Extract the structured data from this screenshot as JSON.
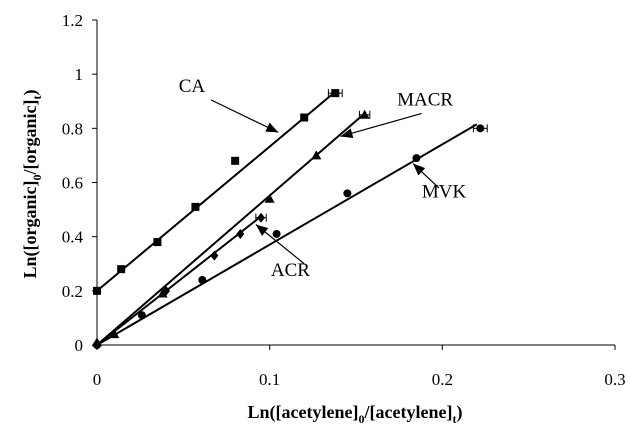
{
  "chart_data": {
    "type": "scatter",
    "title": "",
    "xlabel": "Ln([acetylene]0/[acetylene]t)",
    "ylabel": "Ln([organic]0/[organic]t)",
    "xlabel_parts": {
      "base": "Ln([acetylene]",
      "sub1": "0",
      "mid": "/[acetylene]",
      "sub2": "t",
      "end": ")"
    },
    "ylabel_parts": {
      "base": "Ln([organic]",
      "sub1": "0",
      "mid": "/[organic]",
      "sub2": "t",
      "end": ")"
    },
    "xlim": [
      0,
      0.3
    ],
    "ylim": [
      0,
      1.2
    ],
    "x_ticks": [
      "0",
      "0.1",
      "0.2",
      "0.3"
    ],
    "y_ticks": [
      "0",
      "0.2",
      "0.4",
      "0.6",
      "0.8",
      "1",
      "1.2"
    ],
    "grid": false,
    "series": [
      {
        "name": "CA",
        "marker": "square",
        "x": [
          0,
          0.014,
          0.035,
          0.057,
          0.08,
          0.12,
          0.138
        ],
        "y": [
          0.2,
          0.28,
          0.38,
          0.51,
          0.68,
          0.84,
          0.93
        ],
        "trend": {
          "x0": 0,
          "y0": 0.2,
          "x1": 0.138,
          "y1": 0.935
        },
        "error_x": 0.004
      },
      {
        "name": "MACR",
        "marker": "triangle",
        "x": [
          0,
          0.01,
          0.038,
          0.1,
          0.127,
          0.155
        ],
        "y": [
          0.01,
          0.04,
          0.19,
          0.54,
          0.7,
          0.85
        ],
        "trend": {
          "x0": 0,
          "y0": 0,
          "x1": 0.155,
          "y1": 0.855
        },
        "error_x": 0.003
      },
      {
        "name": "ACR",
        "marker": "diamond",
        "x": [
          0,
          0.04,
          0.068,
          0.083,
          0.095
        ],
        "y": [
          0,
          0.2,
          0.33,
          0.41,
          0.47
        ],
        "trend": {
          "x0": 0,
          "y0": 0,
          "x1": 0.095,
          "y1": 0.475
        },
        "error_x": 0.003
      },
      {
        "name": "MVK",
        "marker": "circle",
        "x": [
          0,
          0.026,
          0.061,
          0.104,
          0.145,
          0.185,
          0.222
        ],
        "y": [
          0,
          0.11,
          0.24,
          0.41,
          0.56,
          0.69,
          0.8
        ],
        "trend": {
          "x0": 0,
          "y0": 0,
          "x1": 0.22,
          "y1": 0.815
        },
        "error_x": 0.004
      }
    ],
    "annotations": [
      {
        "text": "CA",
        "text_x": 0.055,
        "text_y": 0.935,
        "arrow_to_x": 0.105,
        "arrow_to_y": 0.785,
        "arrow_from_x": 0.066,
        "arrow_from_y": 0.905
      },
      {
        "text": "MACR",
        "text_x": 0.19,
        "text_y": 0.885,
        "arrow_to_x": 0.141,
        "arrow_to_y": 0.77,
        "arrow_from_x": 0.188,
        "arrow_from_y": 0.855
      },
      {
        "text": "ACR",
        "text_x": 0.112,
        "text_y": 0.255,
        "arrow_to_x": 0.092,
        "arrow_to_y": 0.445,
        "arrow_from_x": 0.12,
        "arrow_from_y": 0.3
      },
      {
        "text": "MVK",
        "text_x": 0.201,
        "text_y": 0.545,
        "arrow_to_x": 0.183,
        "arrow_to_y": 0.67,
        "arrow_from_x": 0.198,
        "arrow_from_y": 0.58
      }
    ]
  }
}
